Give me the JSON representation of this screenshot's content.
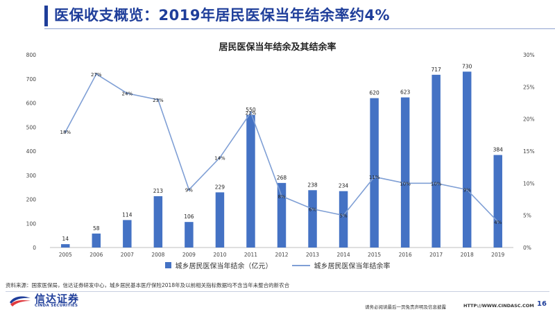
{
  "header": {
    "title": "医保收支概览：2019年居民医保当年结余率约4%"
  },
  "chart_data": {
    "type": "bar",
    "title": "居民医保当年结余及其结余率",
    "categories": [
      "2005",
      "2006",
      "2007",
      "2008",
      "2009",
      "2010",
      "2011",
      "2012",
      "2013",
      "2014",
      "2015",
      "2016",
      "2017",
      "2018",
      "2019"
    ],
    "series": [
      {
        "name": "城乡居民医保当年结余（亿元）",
        "type": "bar",
        "axis": "left",
        "color": "#4472c4",
        "values": [
          14,
          58,
          114,
          213,
          106,
          229,
          550,
          268,
          238,
          234,
          620,
          623,
          717,
          730,
          384
        ]
      },
      {
        "name": "城乡居民医保当年结余率",
        "type": "line",
        "axis": "right",
        "color": "#7f9fd5",
        "values": [
          18,
          27,
          24,
          23,
          9,
          14,
          21,
          8,
          6,
          5,
          11,
          10,
          10,
          9,
          4
        ],
        "labels": [
          "18%",
          "27%",
          "24%",
          "23%",
          "9%",
          "14%",
          "21%",
          "8%",
          "6%",
          "5%",
          "11%",
          "10%",
          "10%",
          "9%",
          "4%"
        ]
      }
    ],
    "y_left": {
      "ylim": [
        0,
        800
      ],
      "ticks": [
        "0",
        "100",
        "200",
        "300",
        "400",
        "500",
        "600",
        "700",
        "800"
      ]
    },
    "y_right": {
      "ylim": [
        0,
        30
      ],
      "ticks": [
        "0%",
        "5%",
        "10%",
        "15%",
        "20%",
        "25%",
        "30%"
      ]
    },
    "grid": false,
    "legend": "bottom"
  },
  "footer": {
    "source": "资料来源：国家医保局，信达证券研发中心，城乡居民基本医疗保险2018年及以前相关指标数据均不含当年未整合的新农合",
    "logo_cn": "信达证券",
    "logo_en": "CINDA SECURITIES",
    "disclaimer": "请务必阅读最后一页免责声明及信息披露",
    "website": "HTTP://WWW.CINDASC.COM",
    "page_number": "16"
  },
  "colors": {
    "brand": "#1f3e9a",
    "logo_red": "#e03a3e"
  }
}
